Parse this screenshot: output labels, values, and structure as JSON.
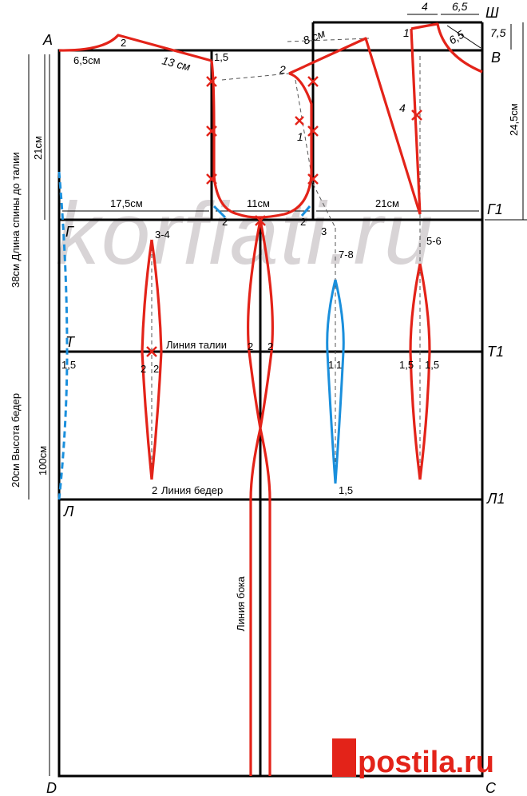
{
  "watermark": "korfiati.ru",
  "logo": "postila.ru",
  "points": {
    "A": "А",
    "Sh": "Ш",
    "V": "В",
    "G": "Г",
    "G1": "Г1",
    "T": "Т",
    "T1": "Т1",
    "L": "Л",
    "L1": "Л1",
    "D": "D",
    "C": "С"
  },
  "labels": {
    "back_neck_width": "6,5см",
    "back_neck_rise": "2",
    "shoulder_length": "13 см",
    "armhole_back_top": "1,5",
    "back_width": "17,5см",
    "armhole_width": "11см",
    "front_width": "21см",
    "front_shoulder_8": "8 см",
    "front_pt_2": "2",
    "front_pt_1a": "1",
    "front_dart_1": "1",
    "front_dart_4": "4",
    "top_4": "4",
    "top_65": "6,5",
    "top_75": "7,5",
    "neck_65": "6,5",
    "front_length": "24,5см",
    "armhole_depth": "21см",
    "back_length_vert": "38см  Длина спины до талии",
    "hip_height_vert": "20см  Высота бедер",
    "total_length_vert": "100см",
    "armhole_bottom_left": "2",
    "armhole_bottom_right": "2",
    "dart_back_34": "3-4",
    "dart_side_78": "7-8",
    "dart_front_56": "5-6",
    "armhole_3": "3",
    "waist_line": "Линия талии",
    "hip_line": "Линия  бедер",
    "side_line": "Линия бока",
    "back_side_15": "1,5",
    "dart_back_2l": "2",
    "dart_back_2r": "2",
    "waist_side_2l": "2",
    "waist_side_2r": "2",
    "dart_side_1l": "1",
    "dart_side_1r": "1",
    "dart_front_15l": "1,5",
    "dart_front_15r": "1,5",
    "hip_back_2": "2",
    "hip_side_15": "1,5"
  }
}
